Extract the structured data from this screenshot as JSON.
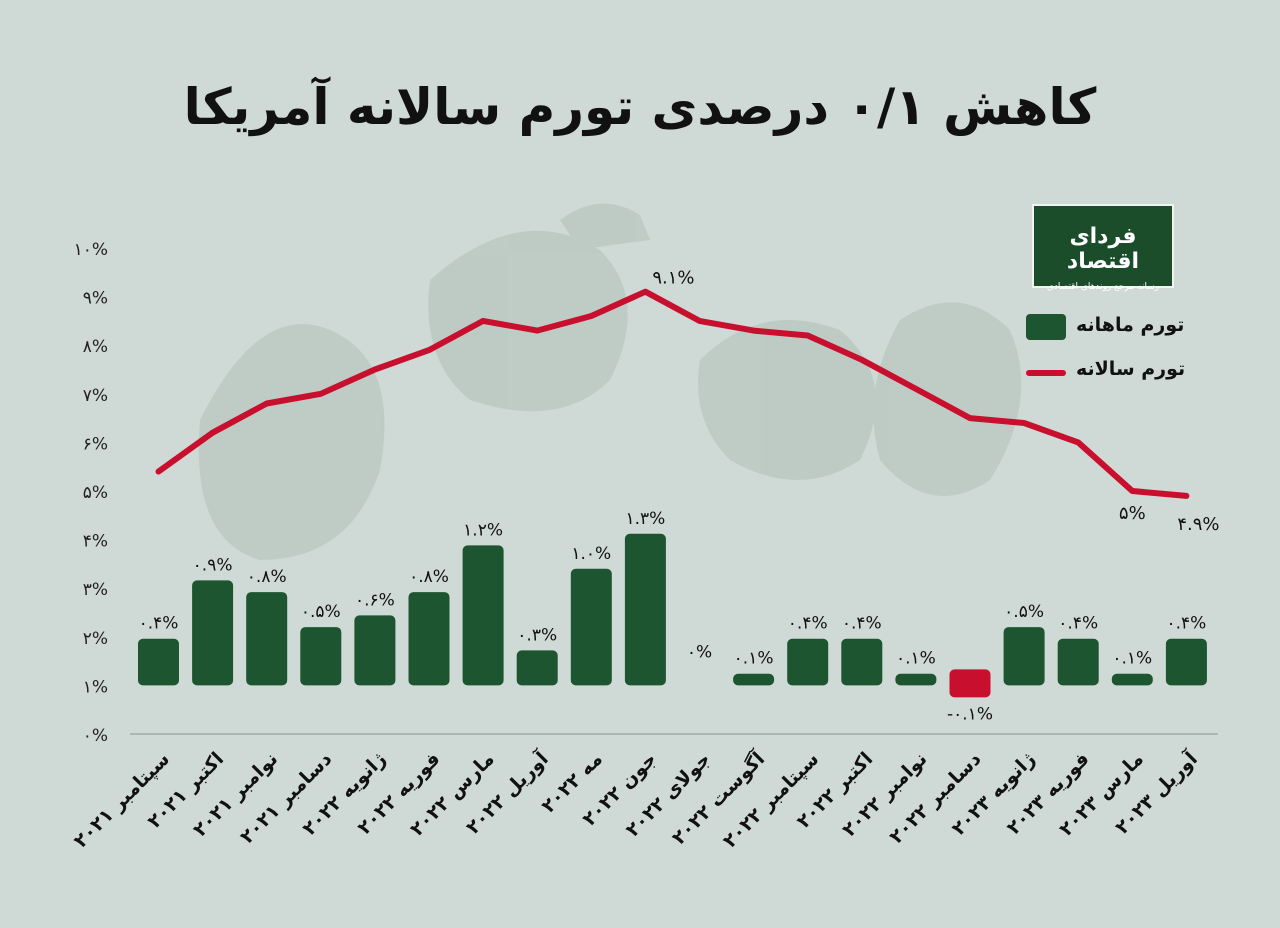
{
  "title": "کاهش ۰/۱ درصدی تورم سالانه آمریکا",
  "logo": {
    "name": "فردای اقتصاد",
    "tagline": "رسانه مرجع روندهای اقتصادی"
  },
  "legend": {
    "monthly": "تورم ماهانه",
    "annual": "تورم سالانه"
  },
  "colors": {
    "bar": "#1c5530",
    "negative_bar": "#c8102e",
    "line": "#c8102e",
    "axis": "#8a9490",
    "background": "#cfd9d6"
  },
  "chart_data": {
    "type": "bar",
    "categories": [
      "سپتامبر ۲۰۲۱",
      "اکتبر ۲۰۲۱",
      "نوامبر ۲۰۲۱",
      "دسامبر ۲۰۲۱",
      "ژانویه ۲۰۲۲",
      "فوریه ۲۰۲۲",
      "مارس ۲۰۲۲",
      "آوریل ۲۰۲۲",
      "مه ۲۰۲۲",
      "جون ۲۰۲۲",
      "جولای ۲۰۲۲",
      "آگوست ۲۰۲۲",
      "سپتامبر ۲۰۲۲",
      "اکتبر ۲۰۲۲",
      "نوامبر ۲۰۲۲",
      "دسامبر ۲۰۲۲",
      "ژانویه ۲۰۲۳",
      "فوریه ۲۰۲۳",
      "مارس ۲۰۲۳",
      "آوریل ۲۰۲۳"
    ],
    "yticks": [
      "۰%",
      "۱%",
      "۲%",
      "۳%",
      "۴%",
      "۵%",
      "۶%",
      "۷%",
      "۸%",
      "۹%",
      "۱۰%"
    ],
    "ylim": [
      0,
      10
    ],
    "series": [
      {
        "name": "تورم ماهانه",
        "type": "bar",
        "values": [
          0.4,
          0.9,
          0.8,
          0.5,
          0.6,
          0.8,
          1.2,
          0.3,
          1.0,
          1.3,
          0,
          0.1,
          0.4,
          0.4,
          0.1,
          -0.1,
          0.5,
          0.4,
          0.1,
          0.4
        ],
        "labels": [
          "۰.۴%",
          "۰.۹%",
          "۰.۸%",
          "۰.۵%",
          "۰.۶%",
          "۰.۸%",
          "۱.۲%",
          "۰.۳%",
          "۱.۰%",
          "۱.۳%",
          "۰%",
          "۰.۱%",
          "۰.۴%",
          "۰.۴%",
          "۰.۱%",
          "-۰.۱%",
          "۰.۵%",
          "۰.۴%",
          "۰.۱%",
          "۰.۴%"
        ]
      },
      {
        "name": "تورم سالانه",
        "type": "line",
        "values": [
          5.4,
          6.2,
          6.8,
          7.0,
          7.5,
          7.9,
          8.5,
          8.3,
          8.6,
          9.1,
          8.5,
          8.3,
          8.2,
          7.7,
          7.1,
          6.5,
          6.4,
          6.0,
          5.0,
          4.9
        ],
        "point_labels": {
          "9": "۹.۱%",
          "18": "۵%",
          "19": "۴.۹%"
        }
      }
    ]
  }
}
